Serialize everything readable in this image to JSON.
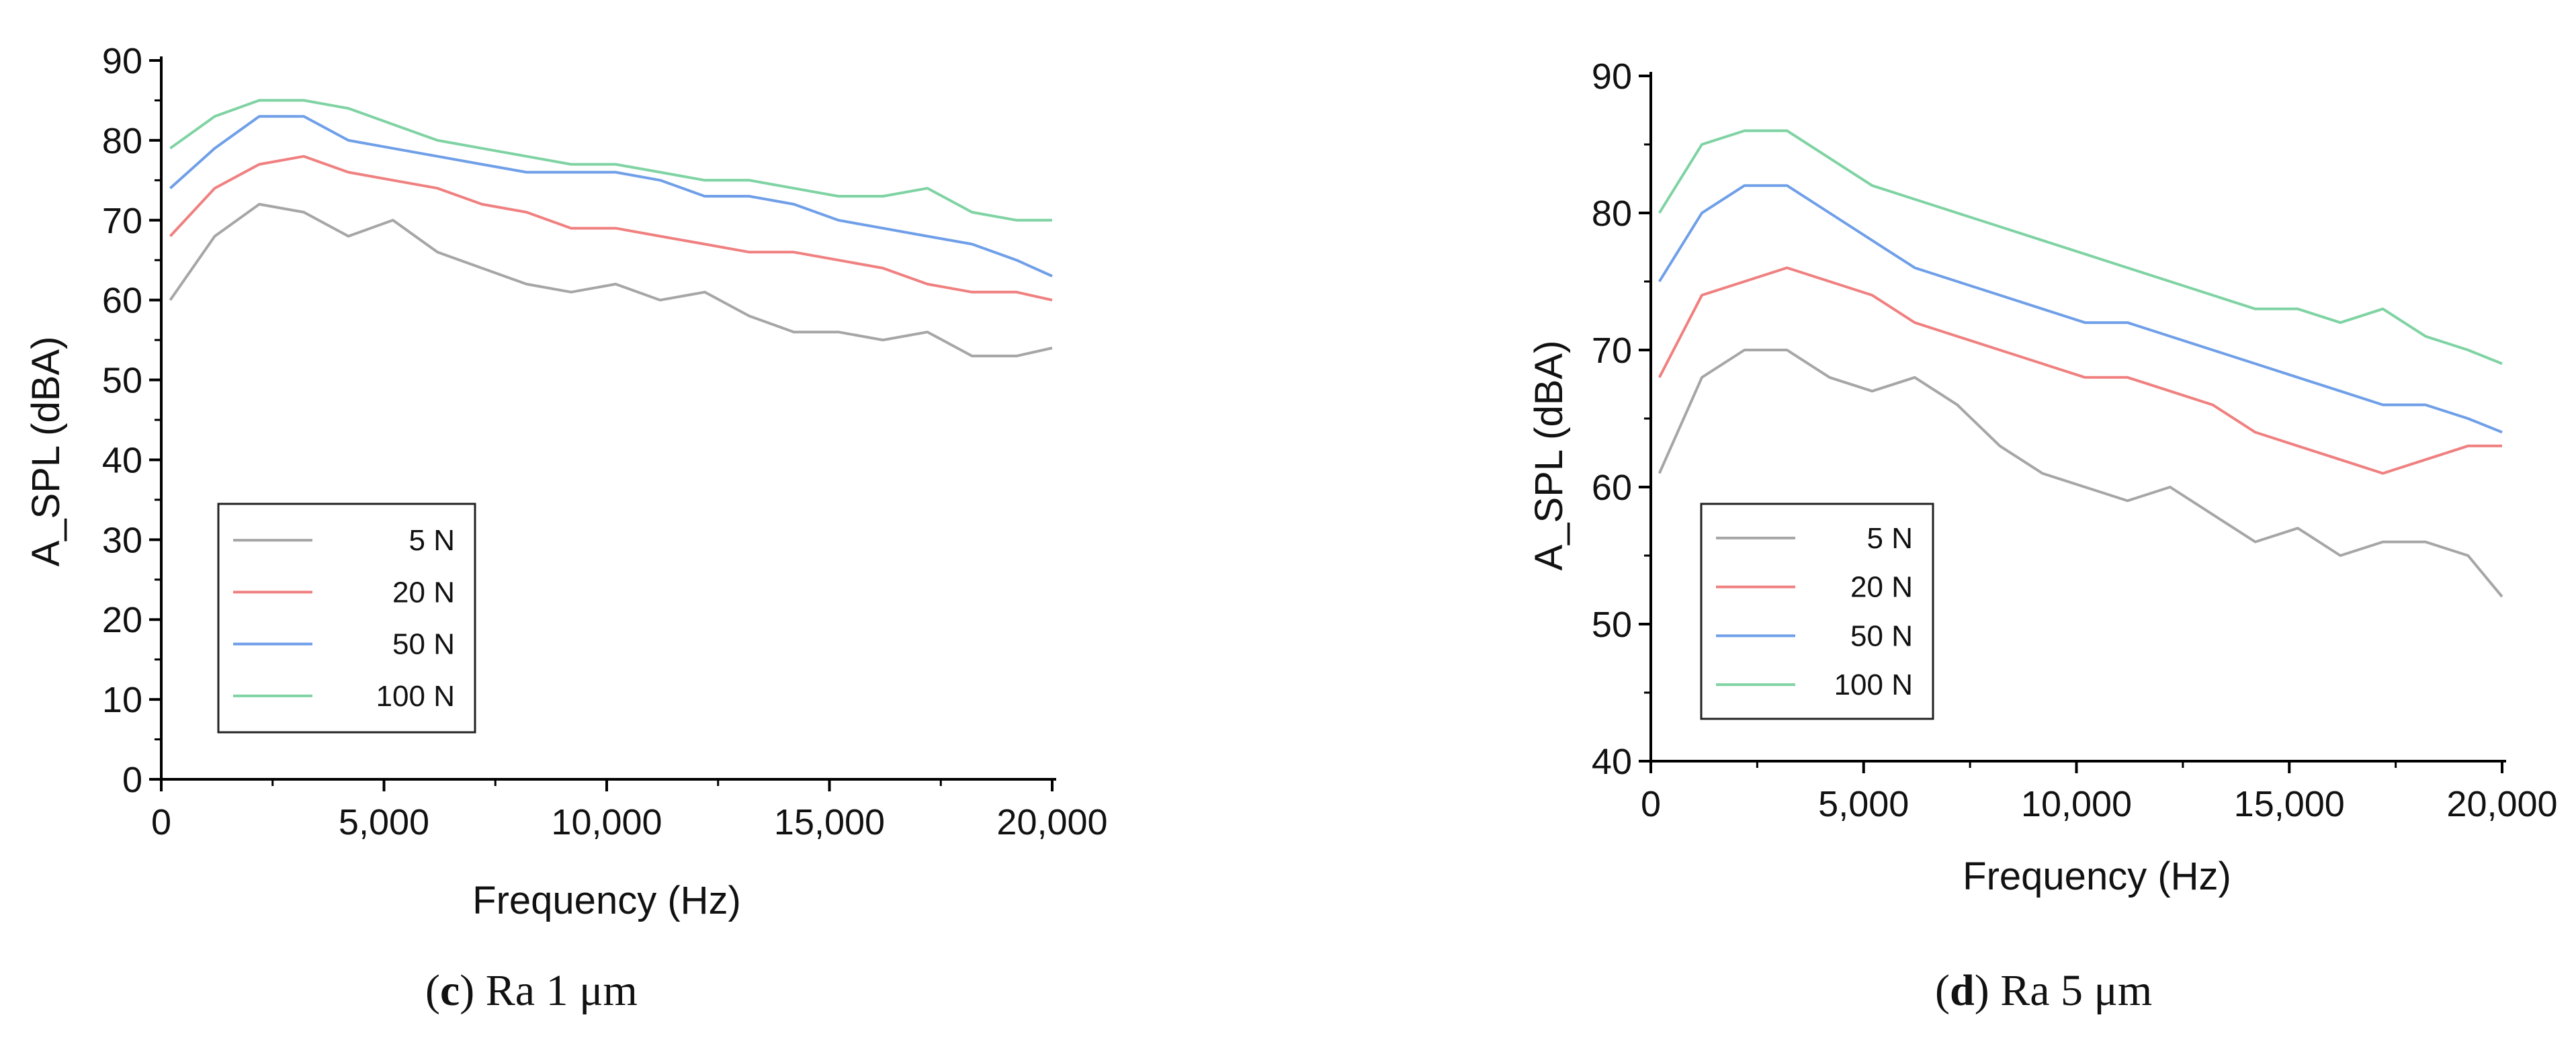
{
  "figures": [
    {
      "caption_letter": "c",
      "caption_text": "Ra 1 μm"
    },
    {
      "caption_letter": "d",
      "caption_text": "Ra 5 μm"
    }
  ],
  "series_colors": {
    "5 N": "#a6a6a6",
    "20 N": "#f08080",
    "50 N": "#6f9fe8",
    "100 N": "#7fd3a3"
  },
  "chart_data": [
    {
      "type": "line",
      "title": "",
      "xlabel": "Frequency (Hz)",
      "ylabel": "A_SPL (dBA)",
      "xlim": [
        0,
        20000
      ],
      "ylim": [
        0,
        90
      ],
      "xticks": [
        0,
        5000,
        10000,
        15000,
        20000
      ],
      "xtick_labels": [
        "0",
        "5,000",
        "10,000",
        "15,000",
        "20,000"
      ],
      "yticks": [
        0,
        10,
        20,
        30,
        40,
        50,
        60,
        70,
        80,
        90
      ],
      "ytick_labels": [
        "0",
        "10",
        "20",
        "30",
        "40",
        "50",
        "60",
        "70",
        "80",
        "90"
      ],
      "grid": false,
      "legend_position": "bottom-left",
      "x": [
        200,
        1200,
        2200,
        3200,
        4200,
        5200,
        6200,
        7200,
        8200,
        9200,
        10200,
        11200,
        12200,
        13200,
        14200,
        15200,
        16200,
        17200,
        18200,
        19200,
        20000
      ],
      "series": [
        {
          "name": "5 N",
          "values": [
            60,
            68,
            72,
            71,
            68,
            70,
            66,
            64,
            62,
            61,
            62,
            60,
            61,
            58,
            56,
            56,
            55,
            56,
            53,
            53,
            54
          ]
        },
        {
          "name": "20 N",
          "values": [
            68,
            74,
            77,
            78,
            76,
            75,
            74,
            72,
            71,
            69,
            69,
            68,
            67,
            66,
            66,
            65,
            64,
            62,
            61,
            61,
            60
          ]
        },
        {
          "name": "50 N",
          "values": [
            74,
            79,
            83,
            83,
            80,
            79,
            78,
            77,
            76,
            76,
            76,
            75,
            73,
            73,
            72,
            70,
            69,
            68,
            67,
            65,
            63
          ]
        },
        {
          "name": "100 N",
          "values": [
            79,
            83,
            85,
            85,
            84,
            82,
            80,
            79,
            78,
            77,
            77,
            76,
            75,
            75,
            74,
            73,
            73,
            74,
            71,
            70,
            70
          ]
        }
      ]
    },
    {
      "type": "line",
      "title": "",
      "xlabel": "Frequency (Hz)",
      "ylabel": "A_SPL (dBA)",
      "xlim": [
        0,
        20000
      ],
      "ylim": [
        40,
        90
      ],
      "xticks": [
        0,
        5000,
        10000,
        15000,
        20000
      ],
      "xtick_labels": [
        "0",
        "5,000",
        "10,000",
        "15,000",
        "20,000"
      ],
      "yticks": [
        40,
        50,
        60,
        70,
        80,
        90
      ],
      "ytick_labels": [
        "40",
        "50",
        "60",
        "70",
        "80",
        "90"
      ],
      "grid": false,
      "legend_position": "bottom-left",
      "x": [
        200,
        1200,
        2200,
        3200,
        4200,
        5200,
        6200,
        7200,
        8200,
        9200,
        10200,
        11200,
        12200,
        13200,
        14200,
        15200,
        16200,
        17200,
        18200,
        19200,
        20000
      ],
      "series": [
        {
          "name": "5 N",
          "values": [
            61,
            68,
            70,
            70,
            68,
            67,
            68,
            66,
            63,
            61,
            60,
            59,
            60,
            58,
            56,
            57,
            55,
            56,
            56,
            55,
            52
          ]
        },
        {
          "name": "20 N",
          "values": [
            68,
            74,
            75,
            76,
            75,
            74,
            72,
            71,
            70,
            69,
            68,
            68,
            67,
            66,
            64,
            63,
            62,
            61,
            62,
            63,
            63
          ]
        },
        {
          "name": "50 N",
          "values": [
            75,
            80,
            82,
            82,
            80,
            78,
            76,
            75,
            74,
            73,
            72,
            72,
            71,
            70,
            69,
            68,
            67,
            66,
            66,
            65,
            64
          ]
        },
        {
          "name": "100 N",
          "values": [
            80,
            85,
            86,
            86,
            84,
            82,
            81,
            80,
            79,
            78,
            77,
            76,
            75,
            74,
            73,
            73,
            72,
            73,
            71,
            70,
            69
          ]
        }
      ]
    }
  ]
}
